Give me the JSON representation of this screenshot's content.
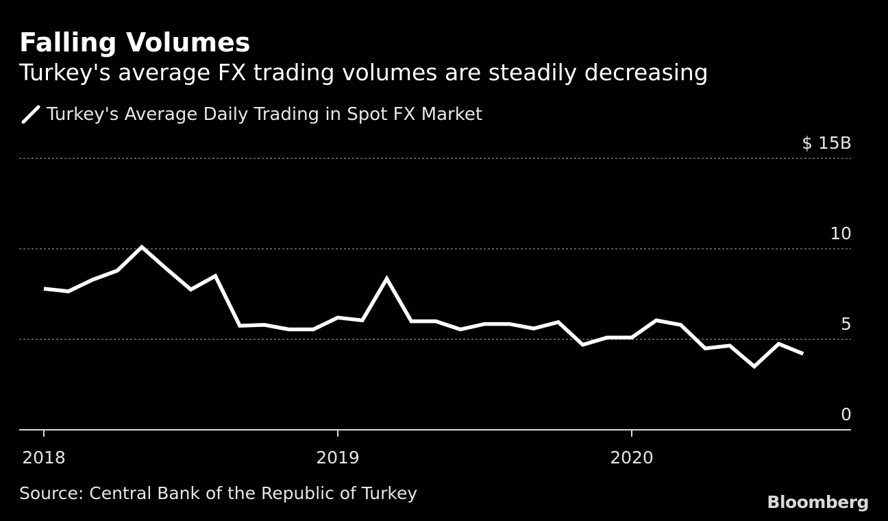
{
  "chart_data": {
    "type": "line",
    "title": "Falling Volumes",
    "subtitle": "Turkey's average FX trading volumes are steadily decreasing",
    "series": [
      {
        "name": "Turkey's Average Daily Trading in Spot FX Market",
        "color": "#ffffff",
        "values": [
          7.8,
          7.65,
          8.3,
          8.8,
          10.1,
          8.9,
          7.75,
          8.5,
          5.75,
          5.8,
          5.55,
          5.55,
          6.2,
          6.05,
          8.35,
          6.0,
          6.0,
          5.55,
          5.85,
          5.85,
          5.6,
          5.95,
          4.7,
          5.1,
          5.1,
          6.05,
          5.8,
          4.5,
          4.65,
          3.5,
          4.75,
          4.2
        ]
      }
    ],
    "x_start": "2018-01",
    "x_step": "month",
    "x_ticks": [
      "2018",
      "2019",
      "2020"
    ],
    "y_ticks": [
      "0",
      "5",
      "10",
      "15"
    ],
    "y_unit_prefix": "$",
    "y_unit_suffix": "B",
    "ylim": [
      0,
      15
    ],
    "grid": true,
    "legend_position": "top-left",
    "source": "Source: Central Bank of the Republic of Turkey",
    "brand": "Bloomberg"
  }
}
